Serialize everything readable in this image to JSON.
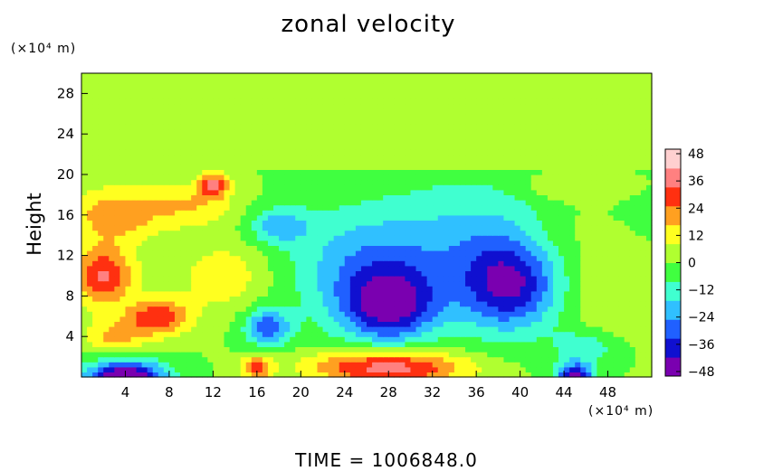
{
  "chart_data": {
    "type": "heatmap",
    "title": "zonal velocity",
    "xlabel": "",
    "ylabel": "Height",
    "x_unit_label": "(×10⁴ m)",
    "y_unit_label": "(×10⁴ m)",
    "xlim": [
      0,
      52
    ],
    "ylim": [
      0,
      30
    ],
    "x_ticks": [
      "4",
      "8",
      "12",
      "16",
      "20",
      "24",
      "28",
      "32",
      "36",
      "40",
      "44",
      "48"
    ],
    "y_ticks": [
      "4",
      "8",
      "12",
      "16",
      "20",
      "24",
      "28"
    ],
    "colorbar": {
      "range": [
        -50,
        50
      ],
      "tick_labels": [
        "48",
        "36",
        "24",
        "12",
        "0",
        "−12",
        "−24",
        "−36",
        "−48"
      ],
      "tick_values": [
        48,
        36,
        24,
        12,
        0,
        -12,
        -24,
        -36,
        -48
      ],
      "colors": [
        "#7a00b0",
        "#1010d0",
        "#2060ff",
        "#30c0ff",
        "#40ffd0",
        "#40ff40",
        "#b0ff30",
        "#ffff20",
        "#ffa020",
        "#ff3010",
        "#ff8080",
        "#ffd0d0"
      ]
    },
    "background_value": 0,
    "features": [
      {
        "x": 28,
        "y": 7,
        "sx": 3.0,
        "sy": 2.5,
        "value": -38
      },
      {
        "x": 26,
        "y": 11,
        "sx": 5.0,
        "sy": 4.0,
        "value": -22
      },
      {
        "x": 39,
        "y": 9,
        "sx": 3.0,
        "sy": 3.0,
        "value": -34
      },
      {
        "x": 37,
        "y": 13,
        "sx": 6.0,
        "sy": 5.0,
        "value": -18
      },
      {
        "x": 2,
        "y": 10,
        "sx": 2.0,
        "sy": 2.0,
        "value": 34
      },
      {
        "x": 3,
        "y": 16,
        "sx": 3.0,
        "sy": 2.0,
        "value": 22
      },
      {
        "x": 7,
        "y": 6,
        "sx": 2.0,
        "sy": 1.3,
        "value": 32
      },
      {
        "x": 28,
        "y": 1,
        "sx": 5.0,
        "sy": 1.2,
        "value": 40
      },
      {
        "x": 4,
        "y": 0,
        "sx": 2.5,
        "sy": 1.2,
        "value": -55
      },
      {
        "x": 45,
        "y": 0,
        "sx": 1.2,
        "sy": 1.0,
        "value": -45
      },
      {
        "x": 17,
        "y": 5,
        "sx": 1.5,
        "sy": 1.3,
        "value": -30
      },
      {
        "x": 18,
        "y": 15,
        "sx": 2.0,
        "sy": 1.3,
        "value": -20
      },
      {
        "x": 13,
        "y": 10,
        "sx": 3.0,
        "sy": 2.5,
        "value": 14
      },
      {
        "x": 10,
        "y": 17,
        "sx": 3.0,
        "sy": 1.5,
        "value": 16
      },
      {
        "x": 44,
        "y": 14,
        "sx": 3.0,
        "sy": 3.0,
        "value": 8
      },
      {
        "x": 48,
        "y": 8,
        "sx": 2.5,
        "sy": 3.0,
        "value": 10
      },
      {
        "x": 12,
        "y": 19,
        "sx": 1.0,
        "sy": 0.8,
        "value": 34
      },
      {
        "x": 16,
        "y": 1,
        "sx": 1.0,
        "sy": 0.8,
        "value": 30
      },
      {
        "x": 3,
        "y": 4,
        "sx": 2.0,
        "sy": 1.3,
        "value": 18
      },
      {
        "x": 46,
        "y": 3,
        "sx": 2.0,
        "sy": 1.2,
        "value": -15
      },
      {
        "x": 44,
        "y": 19,
        "sx": 3.0,
        "sy": 1.0,
        "value": 10
      }
    ]
  },
  "footer": {
    "time_text": "TIME  =  1006848.0"
  }
}
